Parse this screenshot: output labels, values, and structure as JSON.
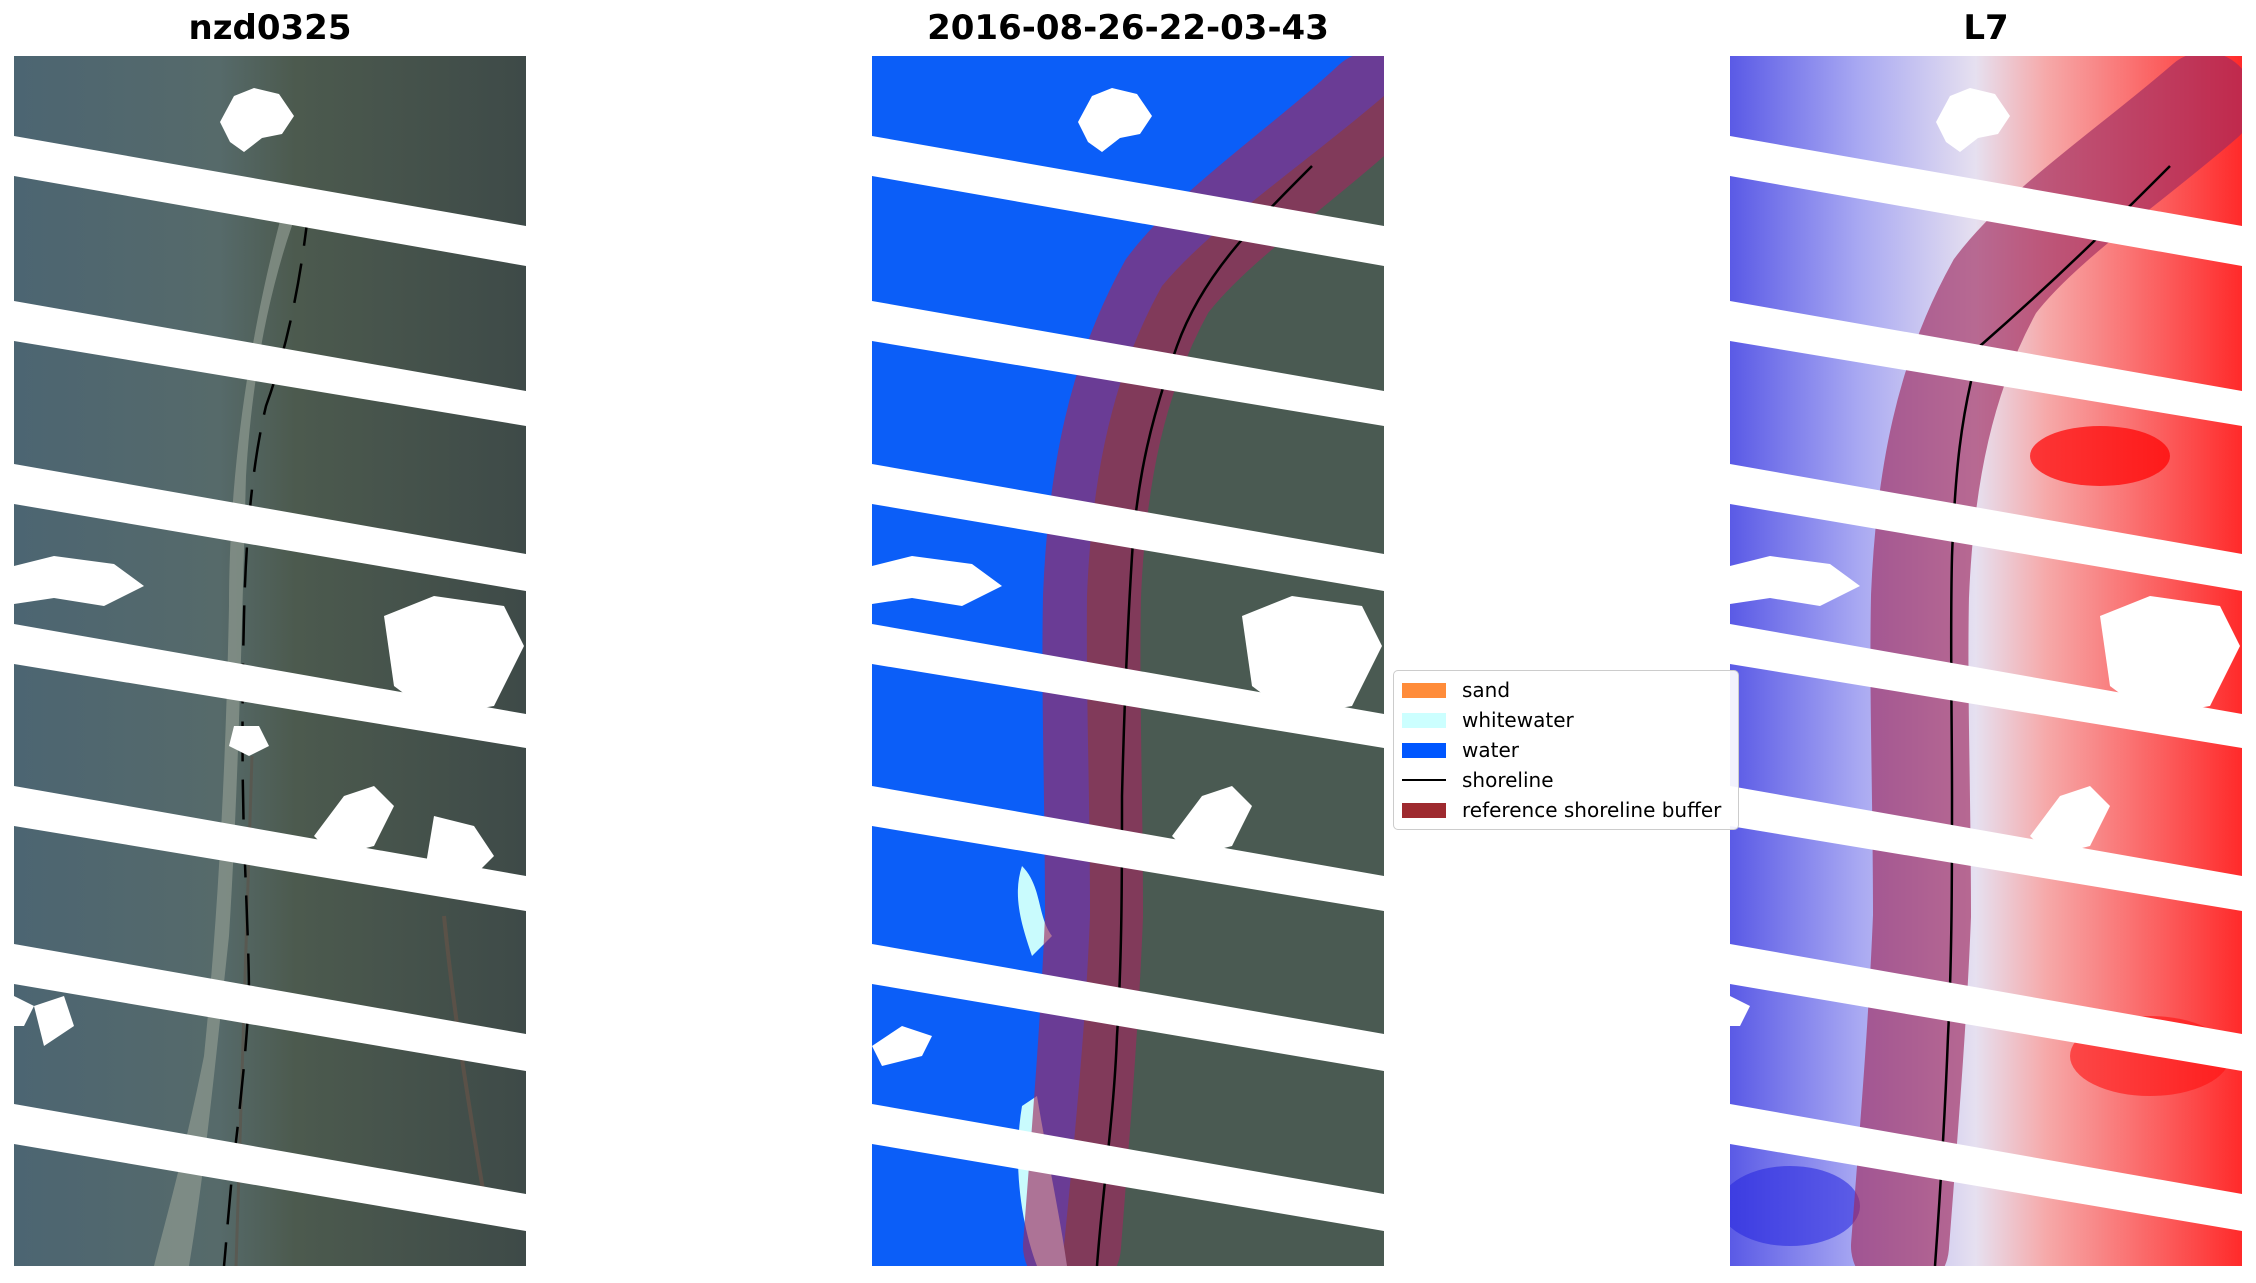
{
  "panels": [
    {
      "title": "nzd0325",
      "kind": "rgb-image"
    },
    {
      "title": "2016-08-26-22-03-43",
      "kind": "classified-image"
    },
    {
      "title": "L7",
      "kind": "index-image"
    }
  ],
  "legend": {
    "items": [
      {
        "label": "sand",
        "color": "#ff8c3a"
      },
      {
        "label": "whitewater",
        "color": "#ccffff"
      },
      {
        "label": "water",
        "color": "#0057ff"
      },
      {
        "label": "shoreline",
        "color": "#000000"
      },
      {
        "label": "reference shoreline buffer",
        "color": "#9e2a2f"
      }
    ]
  },
  "colors": {
    "water": "#0b5ef8",
    "whitewater": "#c9fbfd",
    "buffer": "#9e2a5f",
    "land": "#4a5a52",
    "sea": "#4d6673",
    "index_low": "#3a3ae8",
    "index_high": "#ff1010"
  }
}
